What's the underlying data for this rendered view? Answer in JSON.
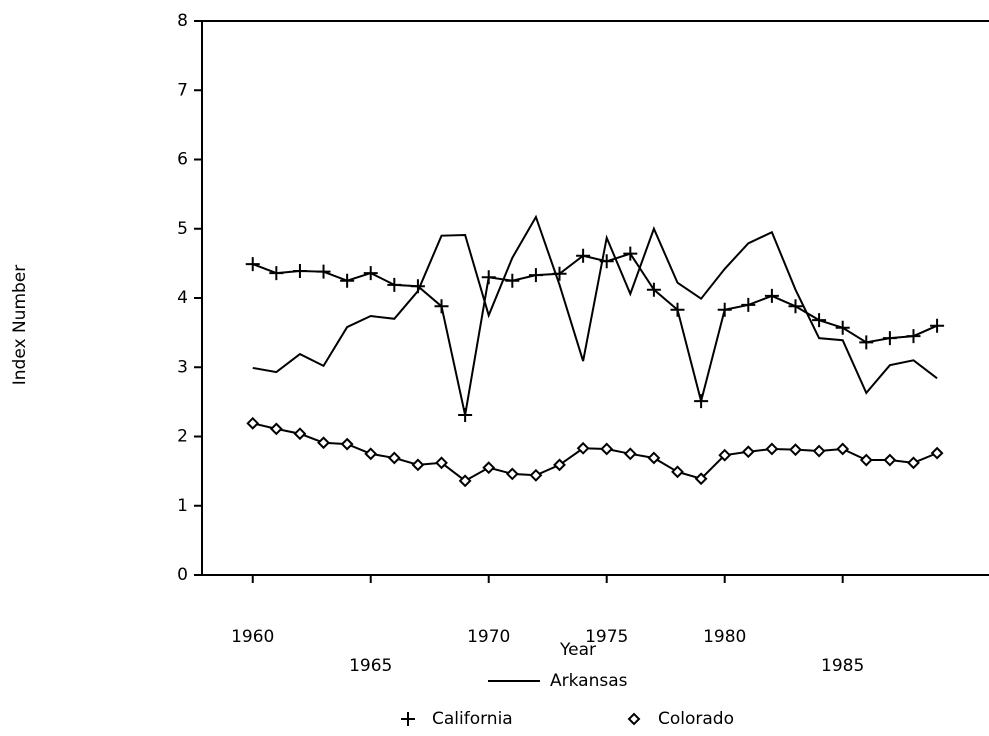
{
  "chart_data": {
    "type": "line",
    "x_label": "Year",
    "y_label": "Index Number",
    "x": [
      1960,
      1961,
      1962,
      1963,
      1964,
      1965,
      1966,
      1967,
      1968,
      1969,
      1970,
      1971,
      1972,
      1973,
      1974,
      1975,
      1976,
      1977,
      1978,
      1979,
      1980,
      1981,
      1982,
      1983,
      1984,
      1985,
      1986,
      1987,
      1988,
      1989
    ],
    "series": [
      {
        "name": "Arkansas",
        "color": "#000000",
        "marker": "none",
        "values": [
          2.99,
          2.93,
          3.19,
          3.02,
          3.58,
          3.74,
          3.7,
          4.1,
          4.9,
          4.91,
          3.75,
          4.58,
          5.17,
          4.19,
          3.09,
          4.87,
          4.06,
          5.0,
          4.22,
          3.99,
          4.42,
          4.79,
          4.95,
          4.12,
          3.42,
          3.39,
          2.63,
          3.03,
          3.1,
          2.84
        ]
      },
      {
        "name": "California",
        "color": "#000000",
        "marker": "plus",
        "values": [
          4.49,
          4.36,
          4.39,
          4.38,
          4.25,
          4.36,
          4.19,
          4.17,
          3.88,
          2.31,
          4.3,
          4.25,
          4.33,
          4.35,
          4.61,
          4.53,
          4.64,
          4.12,
          3.83,
          2.51,
          3.83,
          3.9,
          4.03,
          3.88,
          3.68,
          3.57,
          3.36,
          3.42,
          3.45,
          3.6
        ]
      },
      {
        "name": "Colorado",
        "color": "#000000",
        "marker": "diamond",
        "values": [
          2.19,
          2.11,
          2.04,
          1.91,
          1.89,
          1.75,
          1.69,
          1.59,
          1.62,
          1.36,
          1.55,
          1.46,
          1.44,
          1.59,
          1.83,
          1.82,
          1.75,
          1.69,
          1.49,
          1.39,
          1.73,
          1.78,
          1.82,
          1.81,
          1.79,
          1.82,
          1.66,
          1.66,
          1.62,
          1.76
        ]
      }
    ],
    "xlim": [
      1957.85,
      1991.2
    ],
    "xticks": [
      1960,
      1965,
      1970,
      1975,
      1980,
      1985
    ],
    "ylim": [
      0,
      8
    ],
    "yticks": [
      0,
      1,
      2,
      3,
      4,
      5,
      6,
      7,
      8
    ],
    "grid": false
  }
}
